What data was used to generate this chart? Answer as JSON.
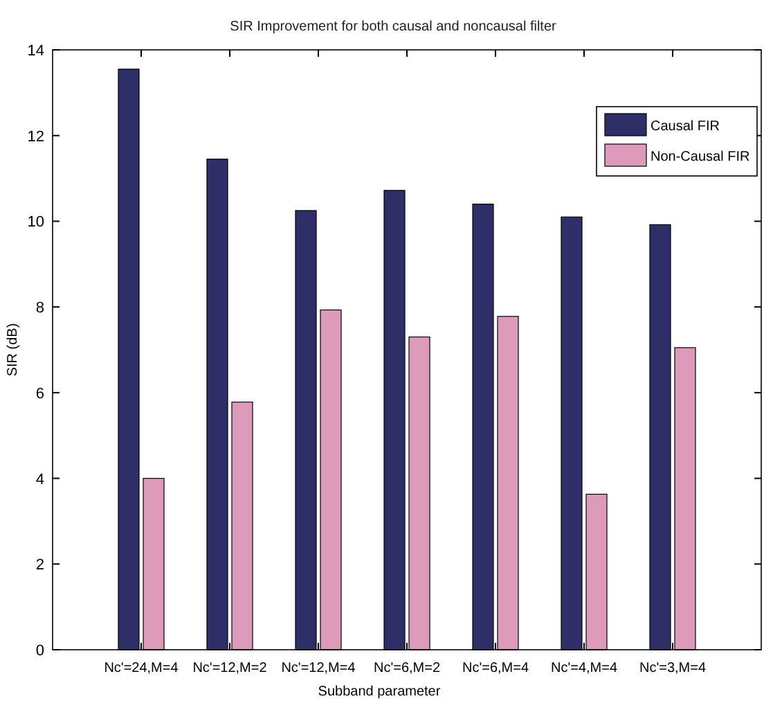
{
  "chart_data": {
    "type": "bar",
    "title": "SIR Improvement for both causal and noncausal filter",
    "xlabel": "Subband parameter",
    "ylabel": "SIR (dB)",
    "categories": [
      "Nc'=24,M=4",
      "Nc'=12,M=2",
      "Nc'=12,M=4",
      "Nc'=6,M=2",
      "Nc'=6,M=4",
      "Nc'=4,M=4",
      "Nc'=3,M=4"
    ],
    "series": [
      {
        "name": "Causal FIR",
        "color": "#2e2f66",
        "values": [
          13.55,
          11.45,
          10.25,
          10.72,
          10.4,
          10.1,
          9.92
        ]
      },
      {
        "name": "Non-Causal FIR",
        "color": "#de9abb",
        "values": [
          4.0,
          5.78,
          7.93,
          7.3,
          7.78,
          3.63,
          7.05
        ]
      }
    ],
    "ylim": [
      0,
      14
    ],
    "yticks": [
      0,
      2,
      4,
      6,
      8,
      10,
      12,
      14
    ],
    "legend": "top right"
  }
}
